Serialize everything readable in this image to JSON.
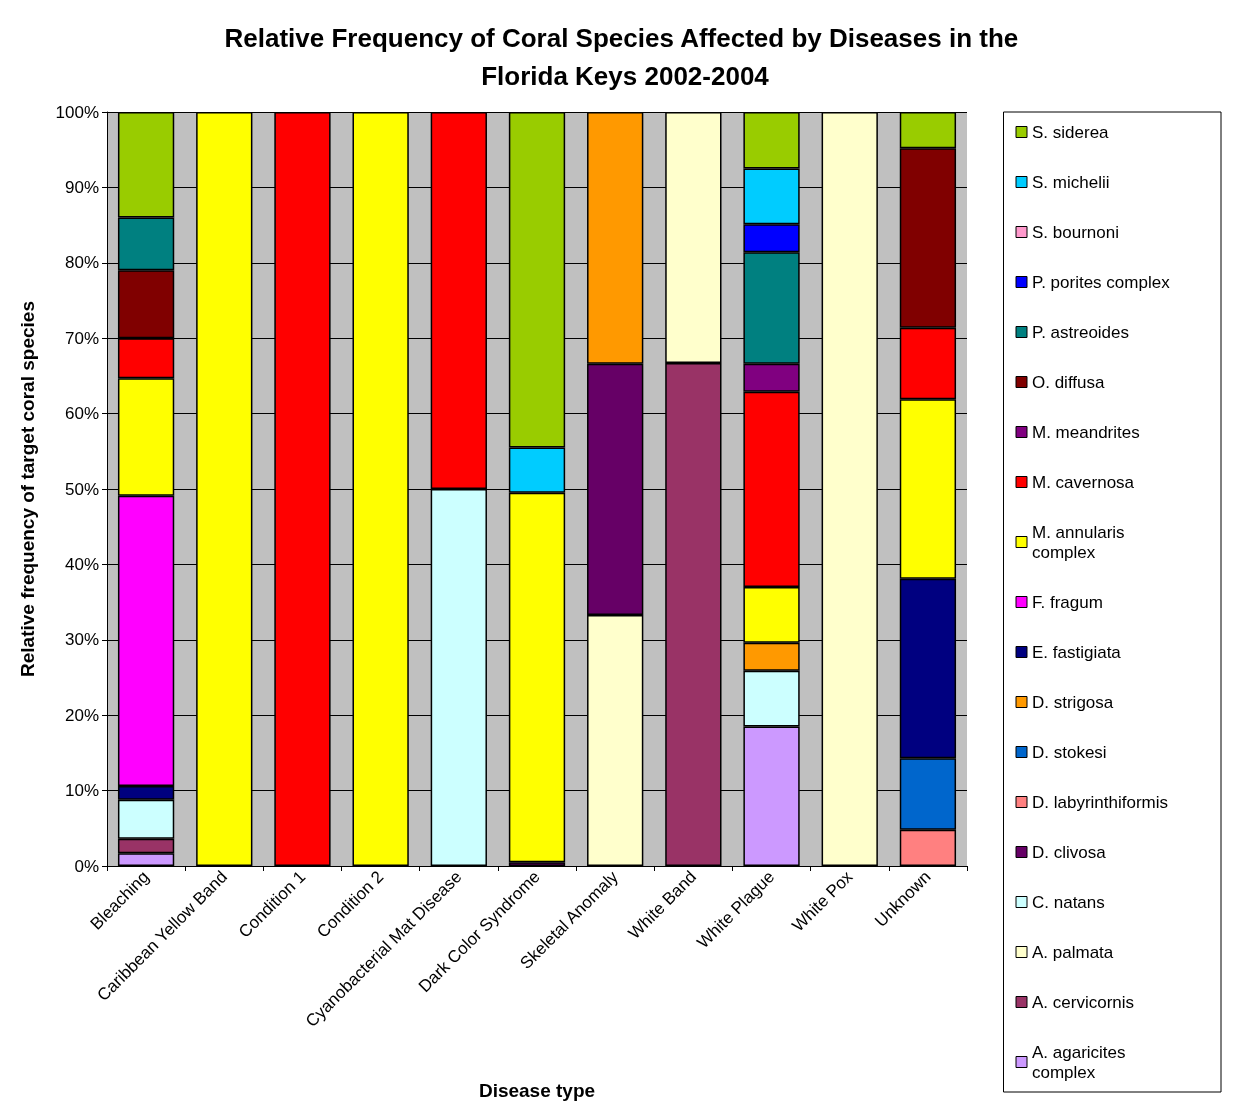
{
  "chart_data": {
    "type": "bar",
    "stacked": true,
    "title": "Relative Frequency of Coral Species Affected by Diseases in the Florida Keys 2002-2004",
    "xlabel": "Disease type",
    "ylabel": "Relative frequency of target coral species",
    "categories": [
      "Bleaching",
      "Caribbean Yellow Band",
      "Condition 1",
      "Condition 2",
      "Cyanobacterial Mat Disease",
      "Dark Color Syndrome",
      "Skeletal Anomaly",
      "White Band",
      "White Plague",
      "White Pox",
      "Unknown"
    ],
    "ylim": [
      0,
      100
    ],
    "yticks": [
      {
        "value": 0,
        "label": "0%"
      },
      {
        "value": 10,
        "label": "10%"
      },
      {
        "value": 20,
        "label": "20%"
      },
      {
        "value": 30,
        "label": "30%"
      },
      {
        "value": 40,
        "label": "40%"
      },
      {
        "value": 50,
        "label": "50%"
      },
      {
        "value": 60,
        "label": "60%"
      },
      {
        "value": 70,
        "label": "70%"
      },
      {
        "value": 80,
        "label": "80%"
      },
      {
        "value": 90,
        "label": "90%"
      },
      {
        "value": 100,
        "label": "100%"
      }
    ],
    "grid": "y",
    "legend": "right",
    "series": [
      {
        "name": "A. agaricites complex",
        "color": "#cc99ff",
        "values": [
          1.7,
          null,
          null,
          null,
          null,
          null,
          null,
          null,
          18.5,
          null,
          null
        ]
      },
      {
        "name": "A. cervicornis",
        "color": "#993366",
        "values": [
          1.9,
          null,
          null,
          null,
          null,
          null,
          null,
          66.7,
          null,
          null,
          null
        ]
      },
      {
        "name": "A. palmata",
        "color": "#ffffcc",
        "values": [
          null,
          null,
          null,
          null,
          null,
          null,
          33.3,
          33.3,
          null,
          100,
          null
        ]
      },
      {
        "name": "C. natans",
        "color": "#ccffff",
        "values": [
          5.2,
          null,
          null,
          null,
          50,
          null,
          null,
          null,
          7.4,
          null,
          null
        ]
      },
      {
        "name": "D. clivosa",
        "color": "#660066",
        "values": [
          null,
          null,
          null,
          null,
          null,
          0.5,
          33.3,
          null,
          null,
          null,
          null
        ]
      },
      {
        "name": "D. labyrinthiformis",
        "color": "#ff8080",
        "values": [
          null,
          null,
          null,
          null,
          null,
          null,
          null,
          null,
          null,
          null,
          4.8
        ]
      },
      {
        "name": "D. stokesi",
        "color": "#0066cc",
        "values": [
          null,
          null,
          null,
          null,
          null,
          null,
          null,
          null,
          null,
          null,
          9.5
        ]
      },
      {
        "name": "D. strigosa",
        "color": "#ff9900",
        "values": [
          null,
          null,
          null,
          null,
          null,
          null,
          33.4,
          null,
          3.7,
          null,
          null
        ]
      },
      {
        "name": "E. fastigiata",
        "color": "#000080",
        "values": [
          1.8,
          null,
          null,
          null,
          null,
          null,
          null,
          null,
          null,
          null,
          23.8
        ]
      },
      {
        "name": "F. fragum",
        "color": "#ff00ff",
        "values": [
          38.5,
          null,
          null,
          null,
          null,
          null,
          null,
          null,
          null,
          null,
          null
        ]
      },
      {
        "name": "M. annularis complex",
        "color": "#ffff00",
        "values": [
          15.6,
          100,
          null,
          100,
          null,
          49,
          null,
          null,
          7.4,
          null,
          23.8
        ]
      },
      {
        "name": "M. cavernosa",
        "color": "#ff0000",
        "values": [
          5.3,
          null,
          100,
          null,
          50,
          null,
          null,
          null,
          25.9,
          null,
          9.5
        ]
      },
      {
        "name": "M. meandrites",
        "color": "#800080",
        "values": [
          null,
          null,
          null,
          null,
          null,
          null,
          null,
          null,
          3.7,
          null,
          null
        ]
      },
      {
        "name": "O. diffusa",
        "color": "#800000",
        "values": [
          9,
          null,
          null,
          null,
          null,
          null,
          null,
          null,
          null,
          null,
          23.8
        ]
      },
      {
        "name": "P. astreoides",
        "color": "#008080",
        "values": [
          7,
          null,
          null,
          null,
          null,
          null,
          null,
          null,
          14.8,
          null,
          null
        ]
      },
      {
        "name": "P. porites complex",
        "color": "#0000ff",
        "values": [
          null,
          null,
          null,
          null,
          null,
          null,
          null,
          null,
          3.7,
          null,
          null
        ]
      },
      {
        "name": "S. bournoni",
        "color": "#ff99cc",
        "values": [
          null,
          null,
          null,
          null,
          null,
          null,
          null,
          null,
          null,
          null,
          null
        ]
      },
      {
        "name": "S. michelii",
        "color": "#00ccff",
        "values": [
          null,
          null,
          null,
          null,
          null,
          6,
          null,
          null,
          7.4,
          null,
          null
        ]
      },
      {
        "name": "S. siderea",
        "color": "#99cc00",
        "values": [
          14,
          null,
          null,
          null,
          null,
          44.5,
          null,
          null,
          7.5,
          null,
          4.8
        ]
      }
    ]
  }
}
